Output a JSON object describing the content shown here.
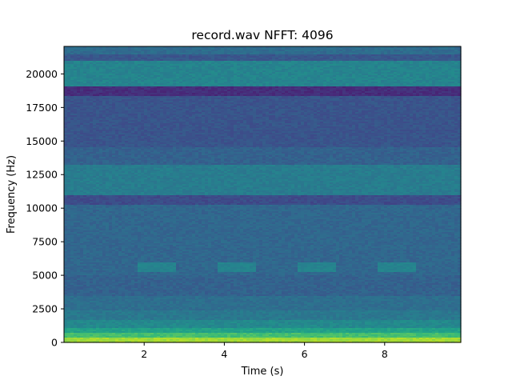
{
  "chart_data": {
    "type": "heatmap",
    "subtype": "spectrogram",
    "title": "record.wav  NFFT: 4096",
    "xlabel": "Time (s)",
    "ylabel": "Frequency (Hz)",
    "xlim": [
      0,
      9.9
    ],
    "ylim": [
      0,
      22050
    ],
    "xticks": [
      2,
      4,
      6,
      8
    ],
    "yticks": [
      0,
      2500,
      5000,
      7500,
      10000,
      12500,
      15000,
      17500,
      20000
    ],
    "colormap": "viridis",
    "grid": false,
    "legend": "none",
    "bands_hz": [
      {
        "from": 0,
        "to": 300,
        "level": 0.86
      },
      {
        "from": 300,
        "to": 700,
        "level": 0.7
      },
      {
        "from": 700,
        "to": 1100,
        "level": 0.57
      },
      {
        "from": 1100,
        "to": 1700,
        "level": 0.47
      },
      {
        "from": 1700,
        "to": 2400,
        "level": 0.4
      },
      {
        "from": 2400,
        "to": 3500,
        "level": 0.36
      },
      {
        "from": 3500,
        "to": 5000,
        "level": 0.31
      },
      {
        "from": 5000,
        "to": 6000,
        "level": 0.33
      },
      {
        "from": 6000,
        "to": 10200,
        "level": 0.33
      },
      {
        "from": 10200,
        "to": 11000,
        "level": 0.23
      },
      {
        "from": 11000,
        "to": 13200,
        "level": 0.42
      },
      {
        "from": 13200,
        "to": 14500,
        "level": 0.31
      },
      {
        "from": 14500,
        "to": 18300,
        "level": 0.26
      },
      {
        "from": 18300,
        "to": 19100,
        "level": 0.13
      },
      {
        "from": 19100,
        "to": 21000,
        "level": 0.45
      },
      {
        "from": 21000,
        "to": 21400,
        "level": 0.27
      },
      {
        "from": 21400,
        "to": 22050,
        "level": 0.35
      }
    ],
    "bursts": [
      {
        "t_from": 1.8,
        "t_to": 2.8,
        "f_from": 5200,
        "f_to": 6000,
        "level": 0.45
      },
      {
        "t_from": 3.8,
        "t_to": 4.8,
        "f_from": 5200,
        "f_to": 6000,
        "level": 0.45
      },
      {
        "t_from": 5.8,
        "t_to": 6.8,
        "f_from": 5200,
        "f_to": 6000,
        "level": 0.45
      },
      {
        "t_from": 7.8,
        "t_to": 8.8,
        "f_from": 5200,
        "f_to": 6000,
        "level": 0.45
      }
    ]
  }
}
